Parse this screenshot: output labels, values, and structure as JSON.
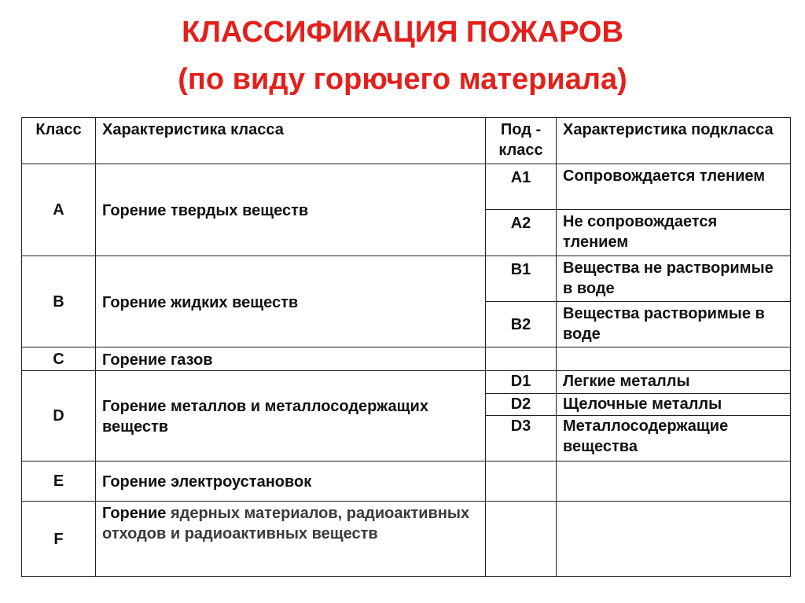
{
  "title": {
    "line1": "КЛАССИФИКАЦИЯ ПОЖАРОВ",
    "line2": "(по виду горючего материала)",
    "color": "#e3201b"
  },
  "table": {
    "headers": {
      "class": "Класс",
      "class_desc": "Характеристика класса",
      "subclass": "Под - класс",
      "subclass_desc": "Характеристика подкласса"
    },
    "rows": [
      {
        "class": "A",
        "desc": "Горение твердых веществ",
        "subclasses": [
          {
            "code": "A1",
            "desc": "Сопровождается тлением"
          },
          {
            "code": "A2",
            "desc": "Не сопровождается тлением"
          }
        ]
      },
      {
        "class": "B",
        "desc": "Горение жидких веществ",
        "subclasses": [
          {
            "code": "B1",
            "desc": "Вещества не растворимые в воде"
          },
          {
            "code": "B2",
            "desc": "Вещества растворимые в воде"
          }
        ]
      },
      {
        "class": "C",
        "desc": "Горение газов",
        "subclasses": []
      },
      {
        "class": "D",
        "desc": "Горение металлов и металлосодержащих веществ",
        "subclasses": [
          {
            "code": "D1",
            "desc": "Легкие металлы"
          },
          {
            "code": "D2",
            "desc": "Щелочные металлы"
          },
          {
            "code": "D3",
            "desc": "Металлосодержащие вещества"
          }
        ]
      },
      {
        "class": "E",
        "desc": "Горение электроустановок",
        "subclasses": []
      },
      {
        "class": "F",
        "desc_bold": "Горение",
        "desc_rest": " ядерных материалов, радиоактивных отходов и радиоактивных веществ",
        "subclasses": []
      }
    ]
  }
}
